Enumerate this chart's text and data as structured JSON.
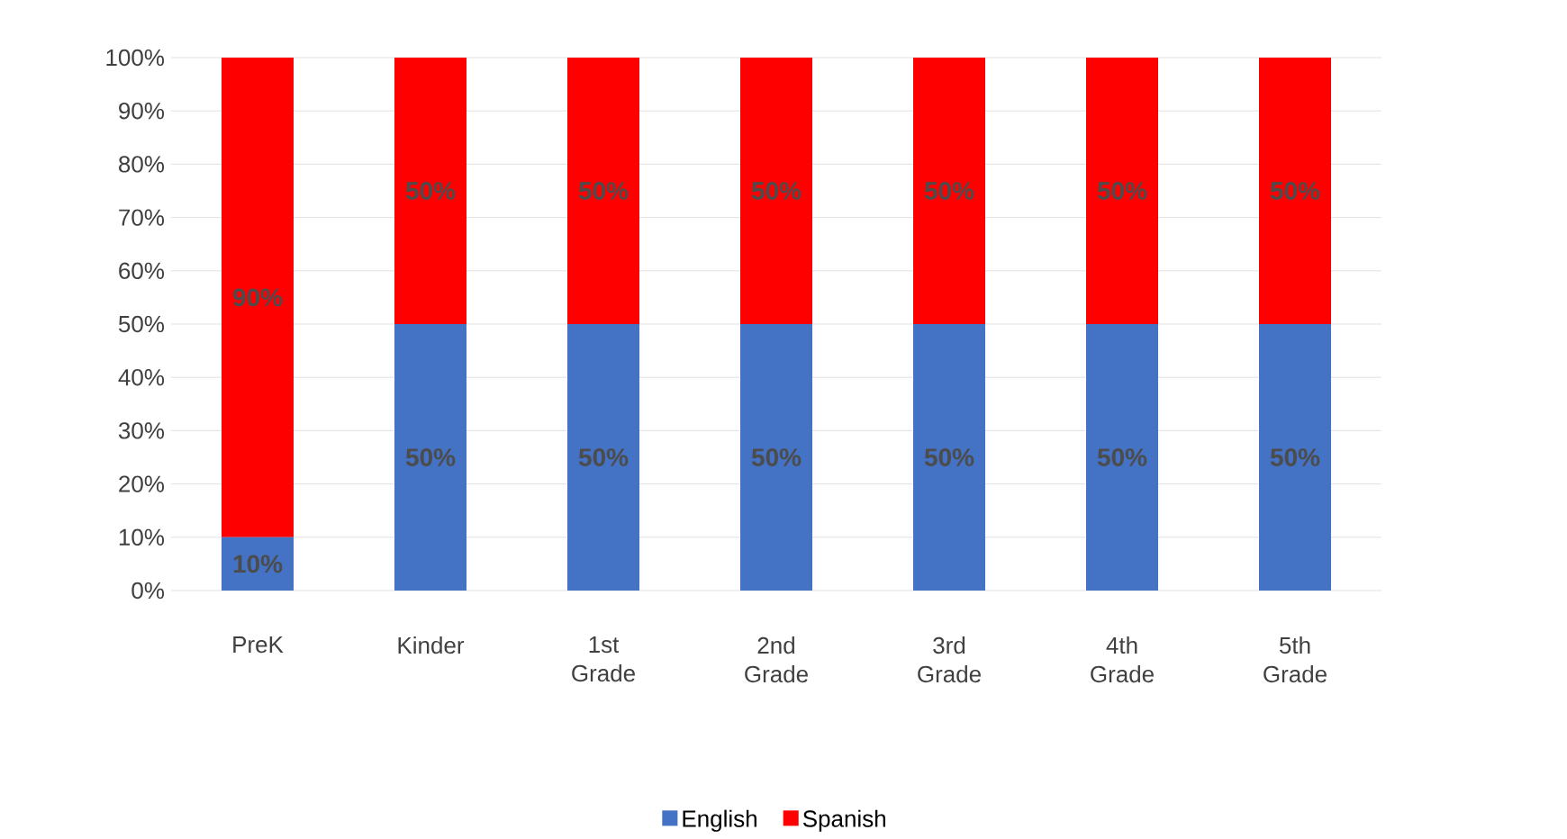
{
  "chart_data": {
    "type": "bar",
    "stacked": true,
    "categories": [
      "PreK",
      "Kinder",
      "1st Grade",
      "2nd Grade",
      "3rd Grade",
      "4th Grade",
      "5th Grade"
    ],
    "series": [
      {
        "name": "English",
        "color": "#4472c4",
        "values": [
          10,
          50,
          50,
          50,
          50,
          50,
          50
        ],
        "value_labels": [
          "10%",
          "50%",
          "50%",
          "50%",
          "50%",
          "50%",
          "50%"
        ]
      },
      {
        "name": "Spanish",
        "color": "#ff0000",
        "values": [
          90,
          50,
          50,
          50,
          50,
          50,
          50
        ],
        "value_labels": [
          "90%",
          "50%",
          "50%",
          "50%",
          "50%",
          "50%",
          "50%"
        ]
      }
    ],
    "ylim": [
      0,
      100
    ],
    "yticks": [
      {
        "value": 0,
        "label": "0%"
      },
      {
        "value": 10,
        "label": "10%"
      },
      {
        "value": 20,
        "label": "20%"
      },
      {
        "value": 30,
        "label": "30%"
      },
      {
        "value": 40,
        "label": "40%"
      },
      {
        "value": 50,
        "label": "50%"
      },
      {
        "value": 60,
        "label": "60%"
      },
      {
        "value": 70,
        "label": "70%"
      },
      {
        "value": 80,
        "label": "80%"
      },
      {
        "value": 90,
        "label": "90%"
      },
      {
        "value": 100,
        "label": "100%"
      }
    ],
    "grid": "y",
    "legend": "bottom"
  }
}
